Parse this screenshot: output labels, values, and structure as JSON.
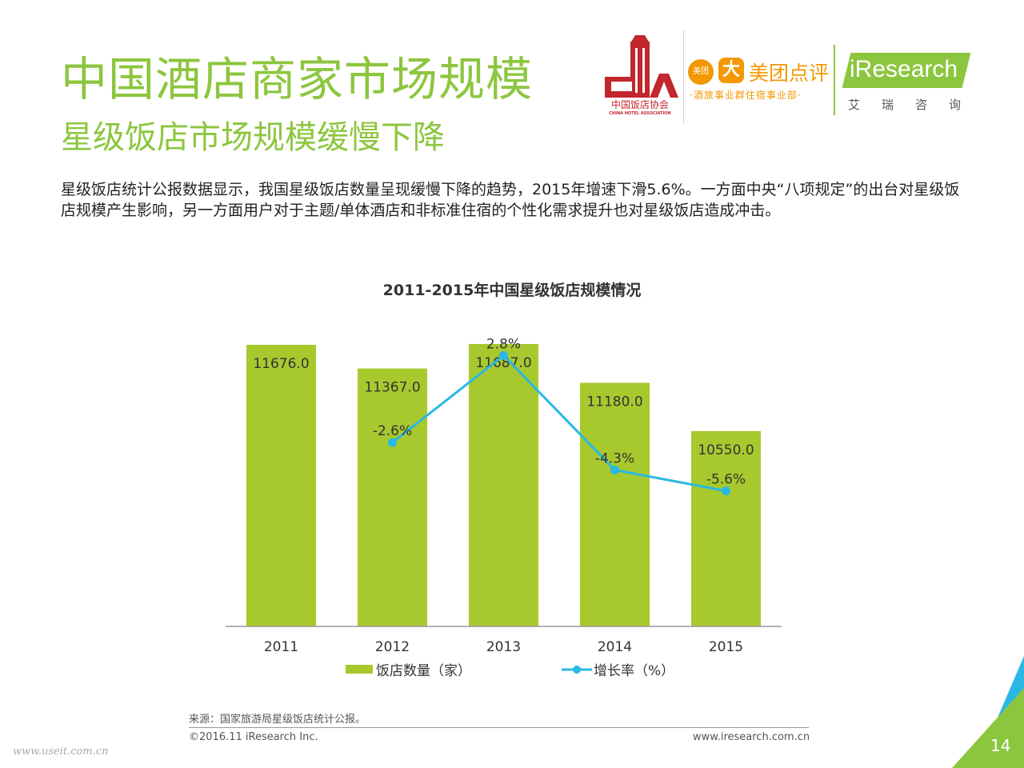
{
  "header": {
    "title": "中国酒店商家市场规模",
    "subtitle": "星级饭店市场规模缓慢下降",
    "body": "星级饭店统计公报数据显示，我国星级饭店数量呈现缓慢下降的趋势，2015年增速下滑5.6%。一方面中央“八项规定”的出台对星级饭店规模产生影响，另一方面用户对于主题/单体酒店和非标准住宿的个性化需求提升也对星级饭店造成冲击。"
  },
  "logos": {
    "cha_name": "中国饭店协会",
    "cha_en": "CHINA HOTEL ASSOCIATION",
    "meituan_badge": "美团",
    "meituan_name": "美团点评",
    "meituan_sub": "·酒旅事业群住宿事业部·",
    "iresearch_name": "iResearch",
    "iresearch_cn": "艾瑞咨询"
  },
  "chart_data": {
    "type": "bar",
    "title": "2011-2015年中国星级饭店规模情况",
    "categories": [
      "2011",
      "2012",
      "2013",
      "2014",
      "2015"
    ],
    "series": [
      {
        "name": "饭店数量（家）",
        "type": "bar",
        "values": [
          11676.0,
          11367.0,
          11687.0,
          11180.0,
          10550.0
        ],
        "labels": [
          "11676.0",
          "11367.0",
          "11687.0",
          "11180.0",
          "10550.0"
        ]
      },
      {
        "name": "增长率（%）",
        "type": "line",
        "values": [
          null,
          -2.6,
          2.8,
          -4.3,
          -5.6
        ],
        "labels": [
          "",
          "-2.6%",
          "2.8%",
          "-4.3%",
          "-5.6%"
        ]
      }
    ],
    "ylim_bar": [
      8000,
      12000
    ],
    "ylim_line": [
      -14,
      5
    ],
    "legend": "bottom",
    "grid": false,
    "colors": {
      "bar": "#a7c92e",
      "line": "#29b8e5",
      "axis": "#999999"
    }
  },
  "footer": {
    "source": "来源：国家旅游局星级饭店统计公报。",
    "copyright": "©2016.11 iResearch Inc.",
    "website": "www.iresearch.com.cn",
    "watermark": "www.useit.com.cn",
    "page_number": "14"
  }
}
